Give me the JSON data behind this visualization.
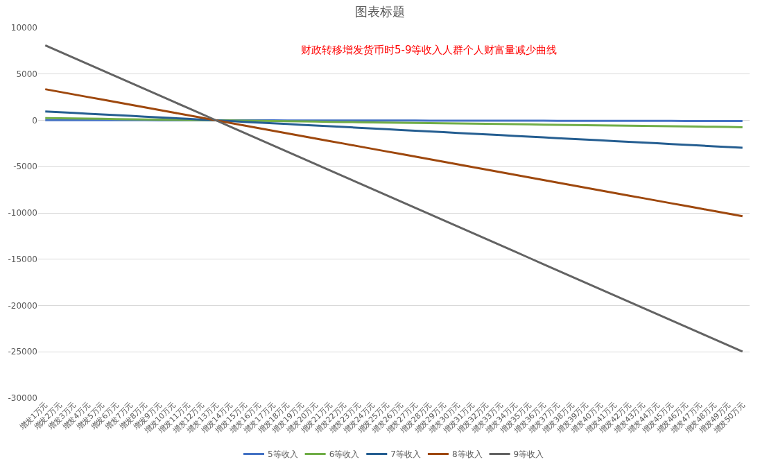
{
  "chart_data": {
    "type": "line",
    "title": "图表标题",
    "annotations": [
      "财政转移增发货币时5-9等收入人群个人财富量减少曲线"
    ],
    "categories": [
      "增发1万元",
      "增发2万元",
      "增发3万元",
      "增发4万元",
      "增发5万元",
      "增发6万元",
      "增发7万元",
      "增发8万元",
      "增发9万元",
      "增发10万元",
      "增发11万元",
      "增发12万元",
      "增发13万元",
      "增发14万元",
      "增发15万元",
      "增发16万元",
      "增发17万元",
      "增发18万元",
      "增发19万元",
      "增发20万元",
      "增发21万元",
      "增发22万元",
      "增发23万元",
      "增发24万元",
      "增发25万元",
      "增发26万元",
      "增发27万元",
      "增发28万元",
      "增发29万元",
      "增发30万元",
      "增发31万元",
      "增发32万元",
      "增发33万元",
      "增发34万元",
      "增发35万元",
      "增发36万元",
      "增发37万元",
      "增发38万元",
      "增发39万元",
      "增发40万元",
      "增发41万元",
      "增发42万元",
      "增发43万元",
      "增发44万元",
      "增发45万元",
      "增发46万元",
      "增发47万元",
      "增发48万元",
      "增发49万元",
      "增发50万元"
    ],
    "series": [
      {
        "name": "5等收入",
        "color": "#4472c4",
        "values": [
          24,
          22,
          20,
          18,
          16,
          14,
          12,
          10,
          8,
          6,
          4,
          2,
          0,
          -2,
          -4,
          -6,
          -8,
          -10,
          -12,
          -14,
          -16,
          -18,
          -20,
          -22,
          -24,
          -26,
          -28,
          -30,
          -32,
          -34,
          -36,
          -38,
          -40,
          -42,
          -44,
          -46,
          -48,
          -50,
          -52,
          -54,
          -56,
          -58,
          -60,
          -62,
          -64,
          -66,
          -68,
          -70,
          -72,
          -74
        ]
      },
      {
        "name": "6等收入",
        "color": "#70ad47",
        "values": [
          240,
          220,
          200,
          180,
          160,
          140,
          120,
          100,
          80,
          60,
          40,
          20,
          0,
          -20,
          -40,
          -60,
          -80,
          -100,
          -120,
          -140,
          -160,
          -180,
          -200,
          -220,
          -240,
          -260,
          -280,
          -300,
          -320,
          -340,
          -360,
          -380,
          -400,
          -420,
          -440,
          -460,
          -480,
          -500,
          -520,
          -540,
          -560,
          -580,
          -600,
          -620,
          -640,
          -660,
          -680,
          -700,
          -720,
          -740
        ]
      },
      {
        "name": "7等收入",
        "color": "#255e91",
        "values": [
          960,
          880,
          800,
          720,
          640,
          560,
          480,
          400,
          320,
          240,
          160,
          80,
          0,
          -80,
          -160,
          -240,
          -320,
          -400,
          -480,
          -560,
          -640,
          -720,
          -800,
          -880,
          -960,
          -1040,
          -1120,
          -1200,
          -1280,
          -1360,
          -1440,
          -1520,
          -1600,
          -1680,
          -1760,
          -1840,
          -1920,
          -2000,
          -2080,
          -2160,
          -2240,
          -2320,
          -2400,
          -2480,
          -2560,
          -2640,
          -2720,
          -2800,
          -2880,
          -2960
        ]
      },
      {
        "name": "8等收入",
        "color": "#9e480e",
        "values": [
          3360,
          3080,
          2800,
          2520,
          2240,
          1960,
          1680,
          1400,
          1120,
          840,
          560,
          280,
          0,
          -280,
          -560,
          -840,
          -1120,
          -1400,
          -1680,
          -1960,
          -2240,
          -2520,
          -2800,
          -3080,
          -3360,
          -3640,
          -3920,
          -4200,
          -4480,
          -4760,
          -5040,
          -5320,
          -5600,
          -5880,
          -6160,
          -6440,
          -6720,
          -7000,
          -7280,
          -7560,
          -7840,
          -8120,
          -8400,
          -8680,
          -8960,
          -9240,
          -9520,
          -9800,
          -10080,
          -10360
        ]
      },
      {
        "name": "9等收入",
        "color": "#636363",
        "values": [
          8100,
          7425,
          6750,
          6075,
          5400,
          4725,
          4050,
          3375,
          2700,
          2025,
          1350,
          675,
          0,
          -675,
          -1350,
          -2025,
          -2700,
          -3375,
          -4050,
          -4725,
          -5400,
          -6075,
          -6750,
          -7425,
          -8100,
          -8775,
          -9450,
          -10125,
          -10800,
          -11475,
          -12150,
          -12825,
          -13500,
          -14175,
          -14850,
          -15525,
          -16200,
          -16875,
          -17550,
          -18225,
          -18900,
          -19575,
          -20250,
          -20925,
          -21600,
          -22275,
          -22950,
          -23625,
          -24300,
          -24975
        ]
      }
    ],
    "ylim": [
      -30000,
      10000
    ],
    "yticks": [
      -30000,
      -25000,
      -20000,
      -15000,
      -10000,
      -5000,
      0,
      5000,
      10000
    ],
    "grid": "y",
    "legend": "bottom",
    "marker": "none",
    "line_style": "solid"
  }
}
